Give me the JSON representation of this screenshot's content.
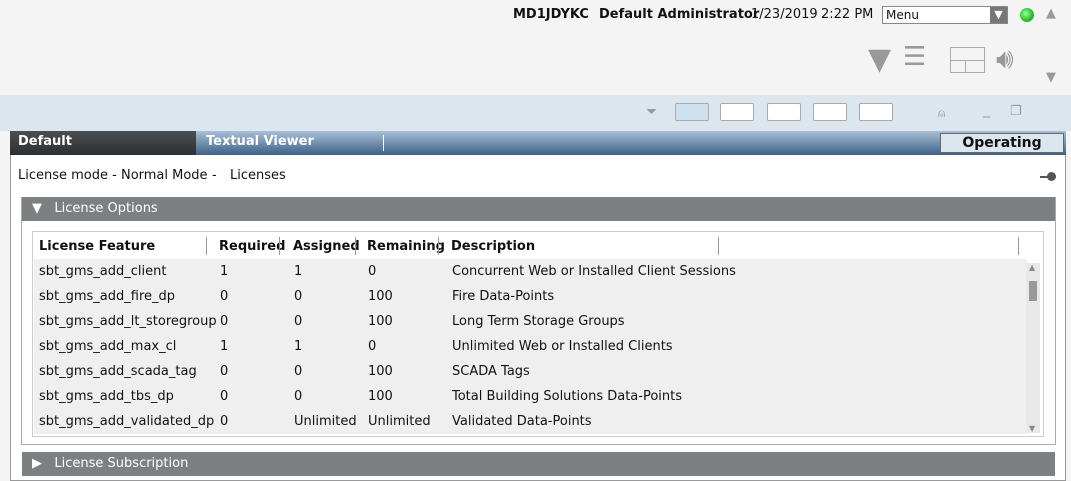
{
  "header": {
    "host": "MD1JDYKC",
    "user": "Default Administrator",
    "date": "1/23/2019",
    "time": "2:22 PM",
    "menu": "Menu",
    "status_color": "#33cc33"
  },
  "icons": [
    "filter-icon",
    "list-play-icon",
    "layout-icon",
    "speaker-icon"
  ],
  "tabs": [
    {
      "label": "Default",
      "active": true
    },
    {
      "label": "Textual Viewer"
    }
  ],
  "mode_button": "Operating",
  "breadcrumb": {
    "mode": "License mode - Normal Mode",
    "sep": "-",
    "page": "Licenses"
  },
  "sections": {
    "options": "License Options",
    "subscription": "License Subscription"
  },
  "table": {
    "columns": [
      "License Feature",
      "Required",
      "Assigned",
      "Remaining",
      "Description"
    ],
    "rows": [
      [
        "sbt_gms_add_client",
        "1",
        "1",
        "0",
        "Concurrent Web or Installed Client Sessions"
      ],
      [
        "sbt_gms_add_fire_dp",
        "0",
        "0",
        "100",
        "Fire Data-Points"
      ],
      [
        "sbt_gms_add_lt_storegroup",
        "0",
        "0",
        "100",
        "Long Term Storage Groups"
      ],
      [
        "sbt_gms_add_max_cl",
        "1",
        "1",
        "0",
        "Unlimited Web or Installed Clients"
      ],
      [
        "sbt_gms_add_scada_tag",
        "0",
        "0",
        "100",
        "SCADA Tags"
      ],
      [
        "sbt_gms_add_tbs_dp",
        "0",
        "0",
        "100",
        "Total Building Solutions Data-Points"
      ],
      [
        "sbt_gms_add_validated_dp",
        "0",
        "Unlimited",
        "Unlimited",
        "Validated Data-Points"
      ]
    ]
  }
}
